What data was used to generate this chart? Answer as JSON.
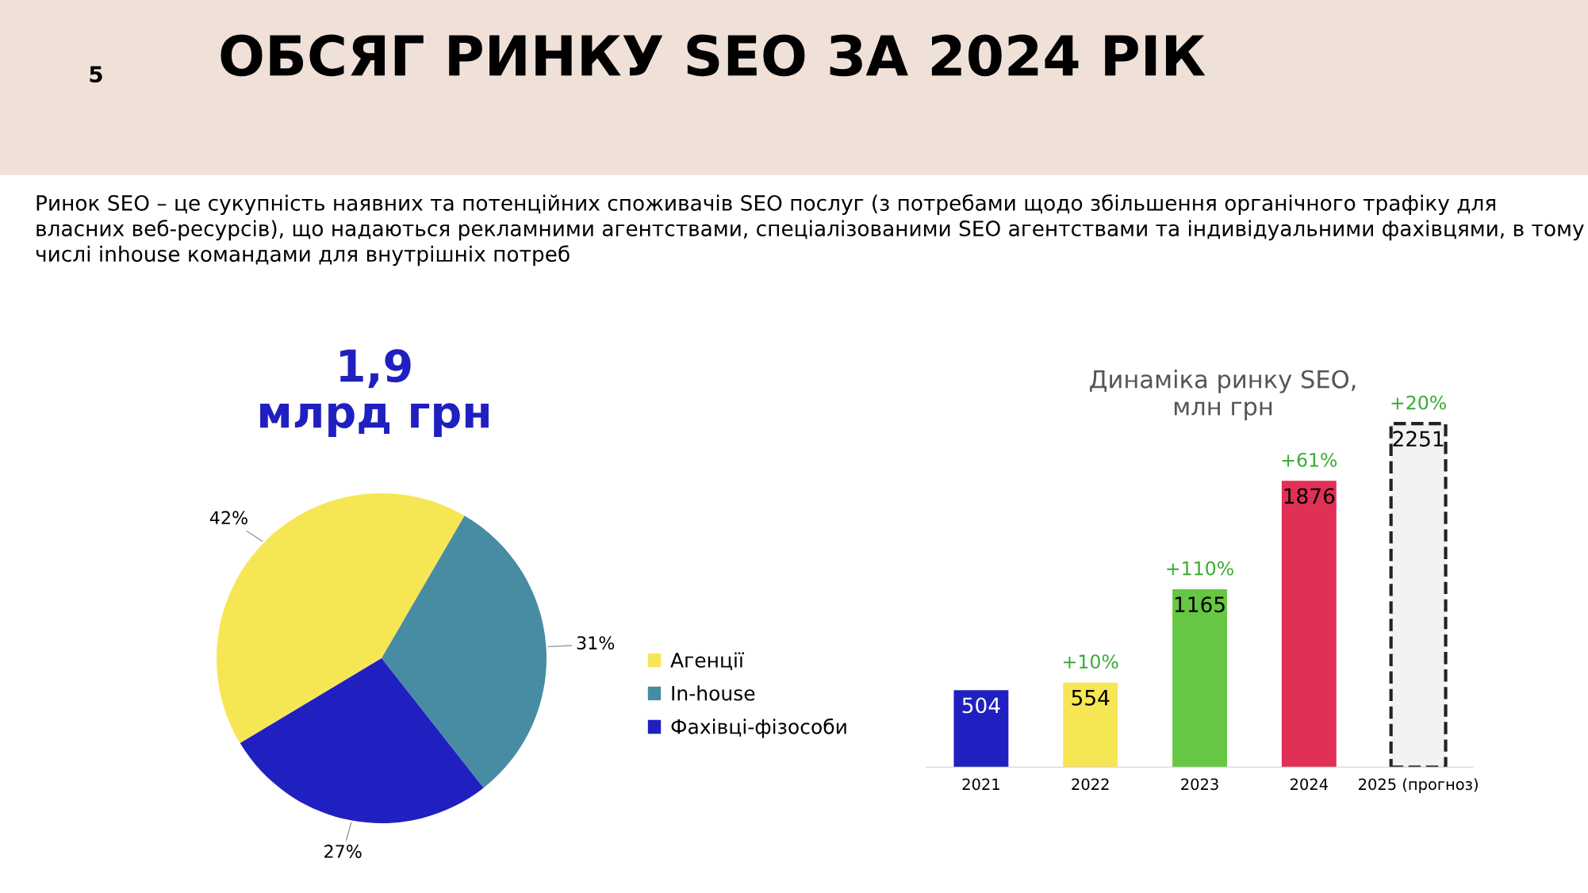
{
  "chart_data": [
    {
      "type": "pie",
      "title": "ОБСЯГ РИНКУ SEO ЗА 2024 РІК",
      "subtitle": "Ринок SEO – це сукупність наявних та потенційних споживачів SEO послуг (з потребами щодо збільшення органічного трафіку для власних веб-ресурсів), що надаються рекламними агентствами, спеціалізованими SEO агентствами та індивідуальними фахівцями, в тому числі inhouse командами для внутрішніх потреб",
      "annotations": [
        "1,9\nмлрд грн",
        "5"
      ],
      "categories": [
        "Агенції",
        "In-house",
        "Фахівці-фізособи"
      ],
      "values": [
        42,
        31,
        27
      ],
      "colors": [
        "#f7e654",
        "#478ca3",
        "#2020c0"
      ],
      "value_labels": [
        "42%",
        "31%",
        "27%"
      ],
      "legend": "right"
    },
    {
      "type": "bar",
      "title": "Динаміка ринку SEO,\nмлн грн",
      "categories": [
        "2021",
        "2022",
        "2023",
        "2024",
        "2025 (прогноз)"
      ],
      "series": [
        {
          "values": [
            504,
            554,
            1165,
            1876,
            null
          ],
          "colors": [
            "#2020c0",
            "#f7e654",
            "#66c744",
            "#e03055",
            "#f2f2f2"
          ],
          "line_style": "solid"
        },
        {
          "values": [
            null,
            null,
            null,
            null,
            2251
          ],
          "color": "#f2f2f2",
          "line_style": "dashed"
        }
      ],
      "data_labels": true,
      "annotations": [
        {
          "text": "+10%",
          "x": "2022",
          "y": 554
        },
        {
          "text": "+110%",
          "x": "2023",
          "y": 1165
        },
        {
          "text": "+61%",
          "x": "2024",
          "y": 1876
        },
        {
          "text": "+20%",
          "x": "2025 (прогноз)",
          "y": 2251
        }
      ]
    }
  ]
}
